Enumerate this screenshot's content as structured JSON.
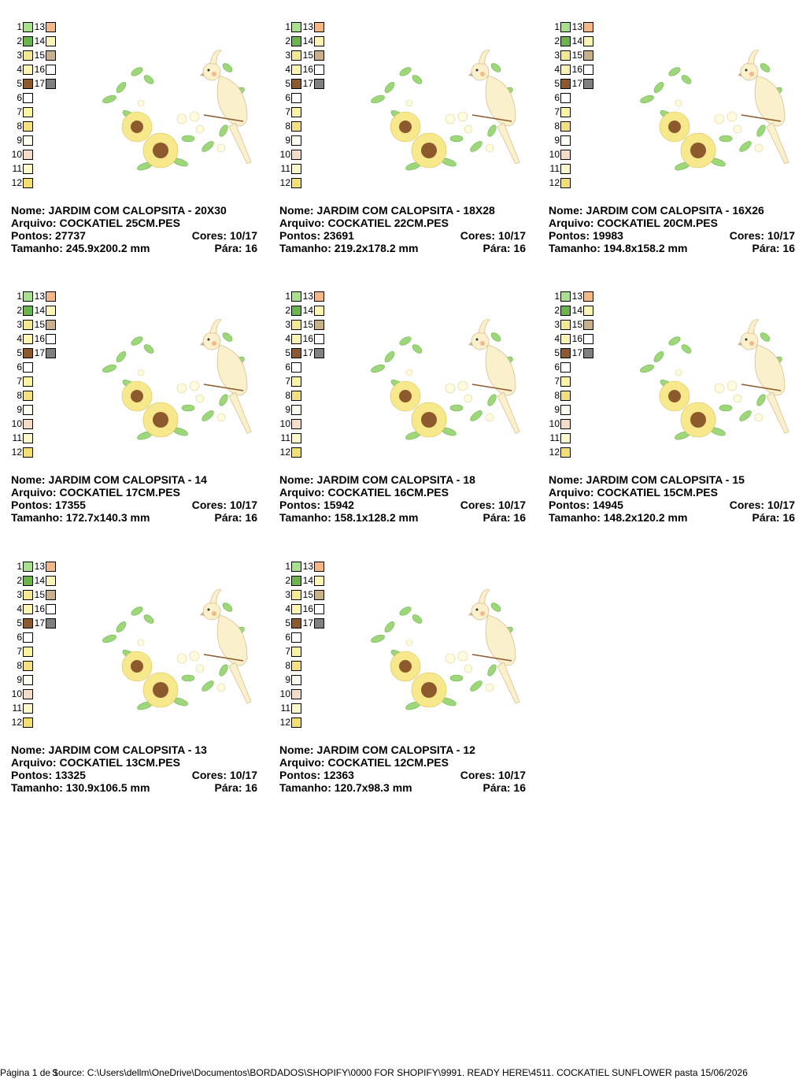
{
  "labels": {
    "name": "Nome:",
    "file": "Arquivo:",
    "points": "Pontos:",
    "colors": "Cores:",
    "size": "Tamanho:",
    "stops": "Pára:"
  },
  "swatches": [
    {
      "n": 1,
      "color": "#a8e08c"
    },
    {
      "n": 2,
      "color": "#6cb44c"
    },
    {
      "n": 3,
      "color": "#f4e890"
    },
    {
      "n": 4,
      "color": "#fcf4b0"
    },
    {
      "n": 5,
      "color": "#8c5a2c"
    },
    {
      "n": 6,
      "color": "#ffffff"
    },
    {
      "n": 7,
      "color": "#fcf4a0"
    },
    {
      "n": 8,
      "color": "#f4e080"
    },
    {
      "n": 9,
      "color": "#fffff0"
    },
    {
      "n": 10,
      "color": "#f4dcc8"
    },
    {
      "n": 11,
      "color": "#fcf8c8"
    },
    {
      "n": 12,
      "color": "#f4e070"
    },
    {
      "n": 13,
      "color": "#f4b888"
    },
    {
      "n": 14,
      "color": "#fcf4b4"
    },
    {
      "n": 15,
      "color": "#c8b08c"
    },
    {
      "n": 16,
      "color": "#ffffff"
    },
    {
      "n": 17,
      "color": "#808080"
    }
  ],
  "designs": [
    {
      "name": "JARDIM COM CALOPSITA - 20X30",
      "file": "COCKATIEL 25CM.PES",
      "points": 27737,
      "colors": "10/17",
      "size": "245.9x200.2 mm",
      "stops": 16
    },
    {
      "name": "JARDIM COM CALOPSITA - 18X28",
      "file": "COCKATIEL 22CM.PES",
      "points": 23691,
      "colors": "10/17",
      "size": "219.2x178.2 mm",
      "stops": 16
    },
    {
      "name": "JARDIM COM CALOPSITA - 16X26",
      "file": "COCKATIEL 20CM.PES",
      "points": 19983,
      "colors": "10/17",
      "size": "194.8x158.2 mm",
      "stops": 16
    },
    {
      "name": "JARDIM COM CALOPSITA - 14",
      "file": "COCKATIEL 17CM.PES",
      "points": 17355,
      "colors": "10/17",
      "size": "172.7x140.3 mm",
      "stops": 16
    },
    {
      "name": "JARDIM COM CALOPSITA - 18",
      "file": "COCKATIEL 16CM.PES",
      "points": 15942,
      "colors": "10/17",
      "size": "158.1x128.2 mm",
      "stops": 16
    },
    {
      "name": "JARDIM COM CALOPSITA - 15",
      "file": "COCKATIEL 15CM.PES",
      "points": 14945,
      "colors": "10/17",
      "size": "148.2x120.2 mm",
      "stops": 16
    },
    {
      "name": "JARDIM COM CALOPSITA - 13",
      "file": "COCKATIEL 13CM.PES",
      "points": 13325,
      "colors": "10/17",
      "size": "130.9x106.5 mm",
      "stops": 16
    },
    {
      "name": "JARDIM COM CALOPSITA - 12",
      "file": "COCKATIEL 12CM.PES",
      "points": 12363,
      "colors": "10/17",
      "size": "120.7x98.3 mm",
      "stops": 16
    }
  ],
  "footer": {
    "page": "Página 1 de 1",
    "source": "Source: C:\\Users\\dellm\\OneDrive\\Documentos\\BORDADOS\\SHOPIFY\\0000 FOR SHOPIFY\\9991. READY HERE\\4511. COCKATIEL SUNFLOWER pasta 15/06/2026"
  }
}
